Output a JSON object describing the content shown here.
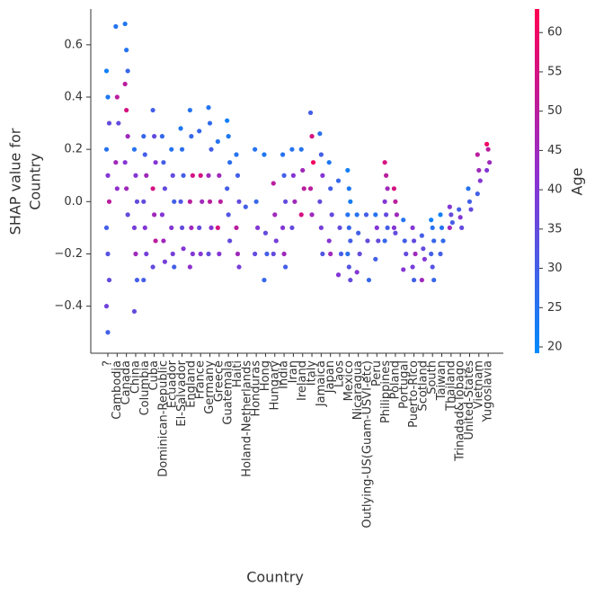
{
  "chart_data": {
    "type": "scatter",
    "xlabel": "Country",
    "ylabel": [
      "SHAP value for",
      "Country"
    ],
    "ylim": [
      -0.58,
      0.737
    ],
    "yticks": [
      {
        "value": -0.4,
        "label": "−0.4"
      },
      {
        "value": -0.2,
        "label": "−0.2"
      },
      {
        "value": 0.0,
        "label": "0.0"
      },
      0.2,
      0.4,
      0.6
    ],
    "colorbar": {
      "label": "Age",
      "lim": [
        19.2,
        63
      ],
      "ticks": [
        20,
        25,
        30,
        35,
        40,
        45,
        50,
        55,
        60
      ],
      "colormap": [
        "#008bfb",
        "#8a32d2",
        "#ff0052"
      ]
    },
    "groups": [
      {
        "category": "?",
        "values": [
          0.5,
          0.4,
          0.3,
          0.2,
          0.1,
          0.0,
          -0.1,
          -0.2,
          -0.3,
          -0.4,
          -0.5
        ],
        "age": [
          22,
          24,
          35,
          25,
          40,
          50,
          30,
          33,
          35,
          37,
          30
        ]
      },
      {
        "category": "Cambodia",
        "values": [
          0.67,
          0.4,
          0.3,
          0.15,
          0.05
        ],
        "age": [
          25,
          50,
          35,
          45,
          42
        ]
      },
      {
        "category": "Canada",
        "values": [
          0.68,
          0.58,
          0.5,
          0.45,
          0.35,
          0.25,
          0.15,
          0.05,
          -0.05
        ],
        "age": [
          24,
          25,
          28,
          50,
          55,
          45,
          40,
          45,
          35
        ]
      },
      {
        "category": "China",
        "values": [
          0.2,
          0.1,
          0.0,
          -0.1,
          -0.2,
          -0.3,
          -0.42
        ],
        "age": [
          25,
          40,
          35,
          38,
          45,
          30,
          35
        ]
      },
      {
        "category": "Columbia",
        "values": [
          0.25,
          0.18,
          0.1,
          0.0,
          -0.1,
          -0.2,
          -0.3
        ],
        "age": [
          28,
          30,
          45,
          35,
          40,
          38,
          30
        ]
      },
      {
        "category": "Cuba",
        "values": [
          0.35,
          0.25,
          0.15,
          0.05,
          -0.05,
          -0.15,
          -0.25
        ],
        "age": [
          30,
          35,
          40,
          55,
          45,
          50,
          35
        ]
      },
      {
        "category": "Dominican-Republic",
        "values": [
          0.25,
          0.15,
          0.05,
          -0.05,
          -0.15,
          -0.23
        ],
        "age": [
          28,
          30,
          35,
          40,
          45,
          38
        ]
      },
      {
        "category": "Ecuador",
        "values": [
          0.2,
          0.1,
          0.0,
          -0.1,
          -0.2,
          -0.25
        ],
        "age": [
          25,
          35,
          30,
          40,
          38,
          30
        ]
      },
      {
        "category": "El-Salvador",
        "values": [
          0.28,
          0.2,
          0.1,
          0.0,
          -0.1,
          -0.18
        ],
        "age": [
          24,
          26,
          30,
          32,
          35,
          40
        ]
      },
      {
        "category": "England",
        "values": [
          0.35,
          0.25,
          0.1,
          0.0,
          -0.1,
          -0.2,
          -0.25
        ],
        "age": [
          25,
          28,
          55,
          50,
          45,
          40,
          42
        ]
      },
      {
        "category": "France",
        "values": [
          0.27,
          0.1,
          0.0,
          -0.1,
          -0.2
        ],
        "age": [
          28,
          55,
          45,
          35,
          40
        ]
      },
      {
        "category": "Germany",
        "values": [
          0.36,
          0.3,
          0.2,
          0.1,
          0.0,
          -0.1,
          -0.2
        ],
        "age": [
          25,
          27,
          30,
          45,
          50,
          40,
          35
        ]
      },
      {
        "category": "Greece",
        "values": [
          0.23,
          0.1,
          0.0,
          -0.1,
          -0.2
        ],
        "age": [
          25,
          45,
          50,
          55,
          40
        ]
      },
      {
        "category": "Guatemala",
        "values": [
          0.31,
          0.25,
          0.15,
          0.05,
          -0.05,
          -0.15
        ],
        "age": [
          22,
          24,
          26,
          30,
          32,
          35
        ]
      },
      {
        "category": "Haiti",
        "values": [
          0.18,
          0.1,
          0.0,
          -0.1,
          -0.2,
          -0.25
        ],
        "age": [
          25,
          30,
          35,
          50,
          45,
          38
        ]
      },
      {
        "category": "Holand-Netherlands",
        "values": [
          -0.02
        ],
        "age": [
          30
        ]
      },
      {
        "category": "Honduras",
        "values": [
          0.2,
          0.0,
          -0.1,
          -0.2
        ],
        "age": [
          25,
          28,
          40,
          35
        ]
      },
      {
        "category": "Hong",
        "values": [
          0.18,
          -0.12,
          -0.2,
          -0.3
        ],
        "age": [
          24,
          35,
          30,
          28
        ]
      },
      {
        "category": "Hungary",
        "values": [
          0.07,
          -0.05,
          -0.15,
          -0.2
        ],
        "age": [
          50,
          45,
          38,
          35
        ]
      },
      {
        "category": "India",
        "values": [
          0.18,
          0.1,
          0.0,
          -0.1,
          -0.2,
          -0.25
        ],
        "age": [
          25,
          30,
          35,
          40,
          45,
          30
        ]
      },
      {
        "category": "Iran",
        "values": [
          0.2,
          0.1,
          0.0,
          -0.1
        ],
        "age": [
          25,
          40,
          45,
          35
        ]
      },
      {
        "category": "Ireland",
        "values": [
          0.2,
          0.12,
          0.05,
          -0.05
        ],
        "age": [
          25,
          45,
          50,
          55
        ]
      },
      {
        "category": "Italy",
        "values": [
          0.34,
          0.25,
          0.15,
          0.05,
          -0.05
        ],
        "age": [
          30,
          55,
          60,
          50,
          45
        ]
      },
      {
        "category": "Jamaica",
        "values": [
          0.26,
          0.18,
          0.1,
          0.0,
          -0.1,
          -0.2
        ],
        "age": [
          26,
          30,
          40,
          35,
          38,
          32
        ]
      },
      {
        "category": "Japan",
        "values": [
          0.15,
          0.05,
          -0.05,
          -0.15,
          -0.2
        ],
        "age": [
          24,
          30,
          35,
          40,
          45
        ]
      },
      {
        "category": "Laos",
        "values": [
          0.08,
          -0.1,
          -0.2,
          -0.28
        ],
        "age": [
          28,
          35,
          30,
          40
        ]
      },
      {
        "category": "Mexico",
        "values": [
          0.12,
          0.05,
          0.0,
          -0.05,
          -0.1,
          -0.15,
          -0.2,
          -0.25,
          -0.3
        ],
        "age": [
          22,
          24,
          23,
          25,
          28,
          30,
          26,
          33,
          35
        ]
      },
      {
        "category": "Nicaragua",
        "values": [
          -0.05,
          -0.12,
          -0.2,
          -0.27
        ],
        "age": [
          25,
          30,
          35,
          40
        ]
      },
      {
        "category": "Outlying-US(Guam-USVI-etc)",
        "values": [
          -0.05,
          -0.15,
          -0.3
        ],
        "age": [
          30,
          35,
          28
        ]
      },
      {
        "category": "Peru",
        "values": [
          -0.05,
          -0.1,
          -0.15,
          -0.22
        ],
        "age": [
          25,
          40,
          35,
          30
        ]
      },
      {
        "category": "Philippines",
        "values": [
          0.15,
          0.1,
          0.05,
          0.0,
          -0.05,
          -0.1,
          -0.15
        ],
        "age": [
          55,
          50,
          45,
          40,
          35,
          30,
          28
        ]
      },
      {
        "category": "Poland",
        "values": [
          0.05,
          0.0,
          -0.05,
          -0.1,
          -0.12
        ],
        "age": [
          55,
          50,
          45,
          40,
          35
        ]
      },
      {
        "category": "Portugal",
        "values": [
          -0.07,
          -0.15,
          -0.2,
          -0.26
        ],
        "age": [
          25,
          30,
          35,
          40
        ]
      },
      {
        "category": "Puerto-Rico",
        "values": [
          -0.1,
          -0.15,
          -0.2,
          -0.25,
          -0.3
        ],
        "age": [
          40,
          35,
          45,
          38,
          30
        ]
      },
      {
        "category": "Scotland",
        "values": [
          -0.13,
          -0.18,
          -0.22,
          -0.3
        ],
        "age": [
          30,
          35,
          40,
          45
        ]
      },
      {
        "category": "South",
        "values": [
          -0.07,
          -0.1,
          -0.15,
          -0.2,
          -0.25,
          -0.3
        ],
        "age": [
          22,
          25,
          28,
          30,
          33,
          28
        ]
      },
      {
        "category": "Taiwan",
        "values": [
          -0.05,
          -0.1,
          -0.15,
          -0.2
        ],
        "age": [
          22,
          25,
          27,
          30
        ]
      },
      {
        "category": "Thailand",
        "values": [
          -0.02,
          -0.05,
          -0.08,
          -0.1
        ],
        "age": [
          40,
          35,
          30,
          45
        ]
      },
      {
        "category": "Trinadad&Tobago",
        "values": [
          -0.03,
          -0.06,
          -0.1
        ],
        "age": [
          30,
          40,
          35
        ]
      },
      {
        "category": "United-States",
        "values": [
          0.05,
          0.0,
          -0.03
        ],
        "age": [
          25,
          30,
          35
        ]
      },
      {
        "category": "Vietnam",
        "values": [
          0.18,
          0.12,
          0.08,
          0.03
        ],
        "age": [
          50,
          45,
          40,
          30
        ]
      },
      {
        "category": "Yugoslavia",
        "values": [
          0.22,
          0.2,
          0.15,
          0.12
        ],
        "age": [
          60,
          50,
          45,
          40
        ]
      }
    ]
  }
}
